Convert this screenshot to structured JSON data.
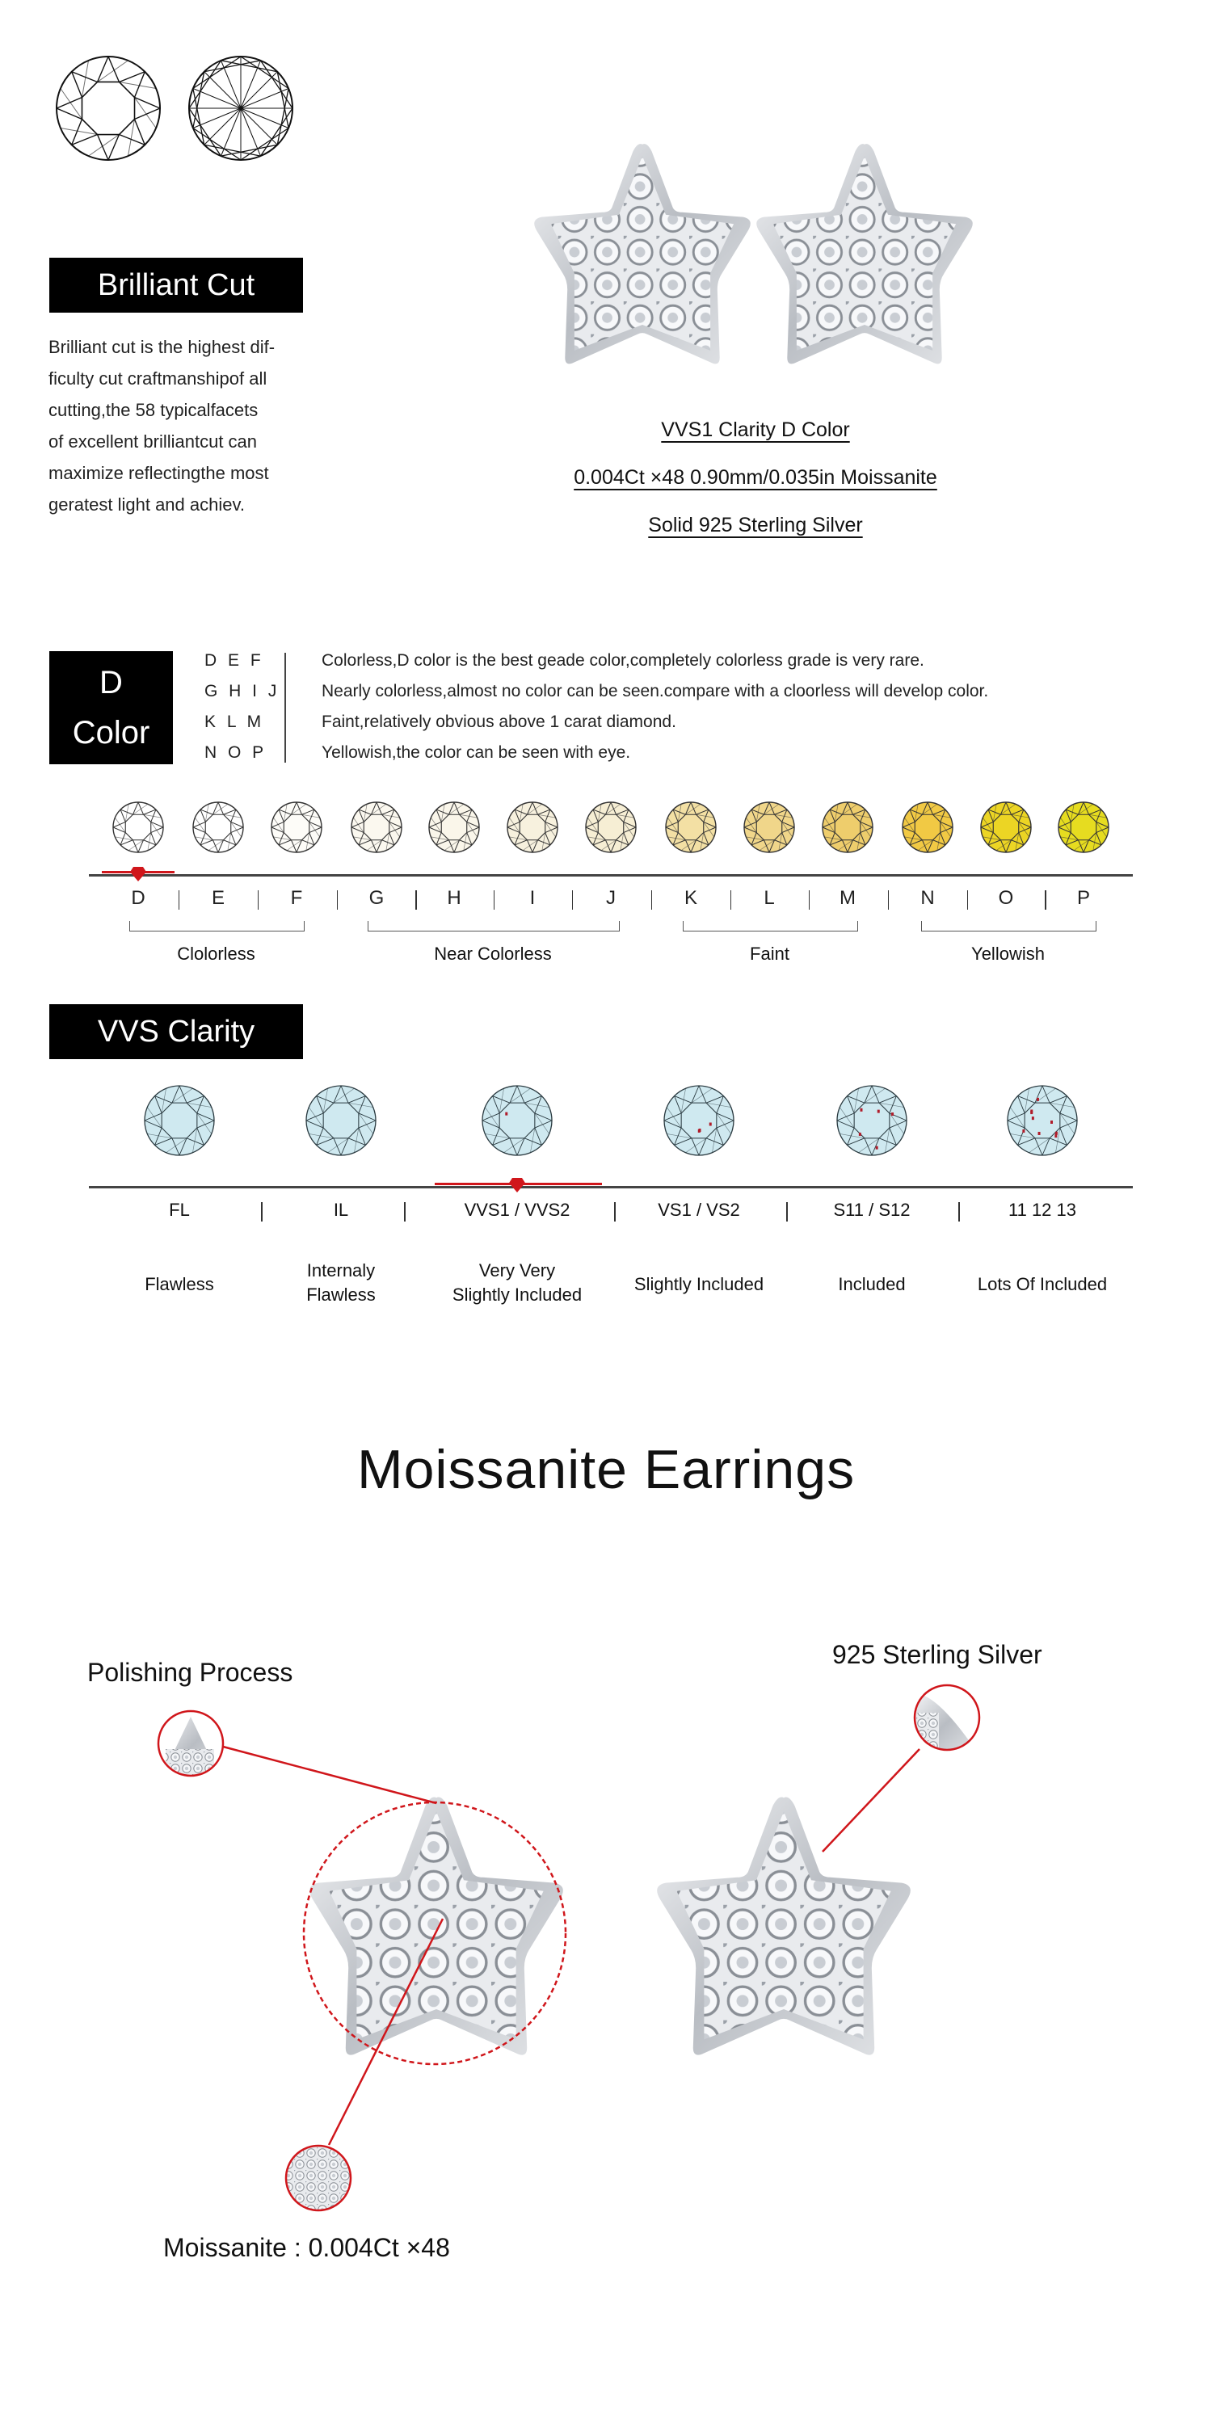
{
  "brilliant": {
    "title": "Brilliant Cut",
    "lines": [
      "Brilliant cut is the highest dif-",
      "ficulty cut craftmanshipof all",
      "cutting,the 58 typicalfacets",
      "of excellent brilliantcut can",
      "maximize reflectingthe most",
      "geratest light and achiev."
    ],
    "icons": [
      "brilliant-cut-top-view-icon",
      "brilliant-cut-bottom-view-icon"
    ]
  },
  "product_specs": [
    "VVS1 Clarity D Color",
    "0.004Ct ×48  0.90mm/0.035in Moissanite",
    "Solid 925 Sterling Silver"
  ],
  "color": {
    "title_line1": "D",
    "title_line2": "Color",
    "rows": [
      {
        "grades": "D E F",
        "text": "Colorless,D color is the best geade color,completely colorless grade is very rare."
      },
      {
        "grades": "G H I J",
        "text": "Nearly colorless,almost no color can be seen.compare with a cloorless will develop color."
      },
      {
        "grades": "K L M",
        "text": "Faint,relatively obvious above 1 carat diamond."
      },
      {
        "grades": "N O P",
        "text": "Yellowish,the color can be seen with eye."
      }
    ],
    "scale": [
      "D",
      "E",
      "F",
      "G",
      "H",
      "I",
      "J",
      "K",
      "L",
      "M",
      "N",
      "O",
      "P"
    ],
    "scale_colors": [
      "#ffffff",
      "#ffffff",
      "#fdfcf8",
      "#fbf8ef",
      "#faf6ea",
      "#f7f1de",
      "#f6eed4",
      "#f3e0a4",
      "#f0d68a",
      "#eecd6c",
      "#f1c944",
      "#ecd524",
      "#e6dc20"
    ],
    "selected": "D",
    "groups": [
      "Clolorless",
      "Near Colorless",
      "Faint",
      "Yellowish"
    ]
  },
  "clarity": {
    "title": "VVS Clarity",
    "grades": [
      "FL",
      "IL",
      "VVS1 / VVS2",
      "VS1 / VS2",
      "S11 / S12",
      "11 12 13"
    ],
    "descriptions": [
      [
        "Flawless"
      ],
      [
        "Internaly",
        "Flawless"
      ],
      [
        "Very Very",
        "Slightly Included"
      ],
      [
        "Slightly Included"
      ],
      [
        "Included"
      ],
      [
        "Lots Of Included"
      ]
    ],
    "inclusions": [
      0,
      0,
      1,
      3,
      5,
      9
    ],
    "selected": "VVS1 / VVS2",
    "gem_color": "#cfe9f0"
  },
  "accent_color": "#d0161b",
  "showcase": {
    "title": "Moissanite Earrings",
    "callout_polishing": "Polishing Process",
    "callout_silver": "925 Sterling Silver",
    "callout_moissanite": "Moissanite : 0.004Ct ×48"
  }
}
